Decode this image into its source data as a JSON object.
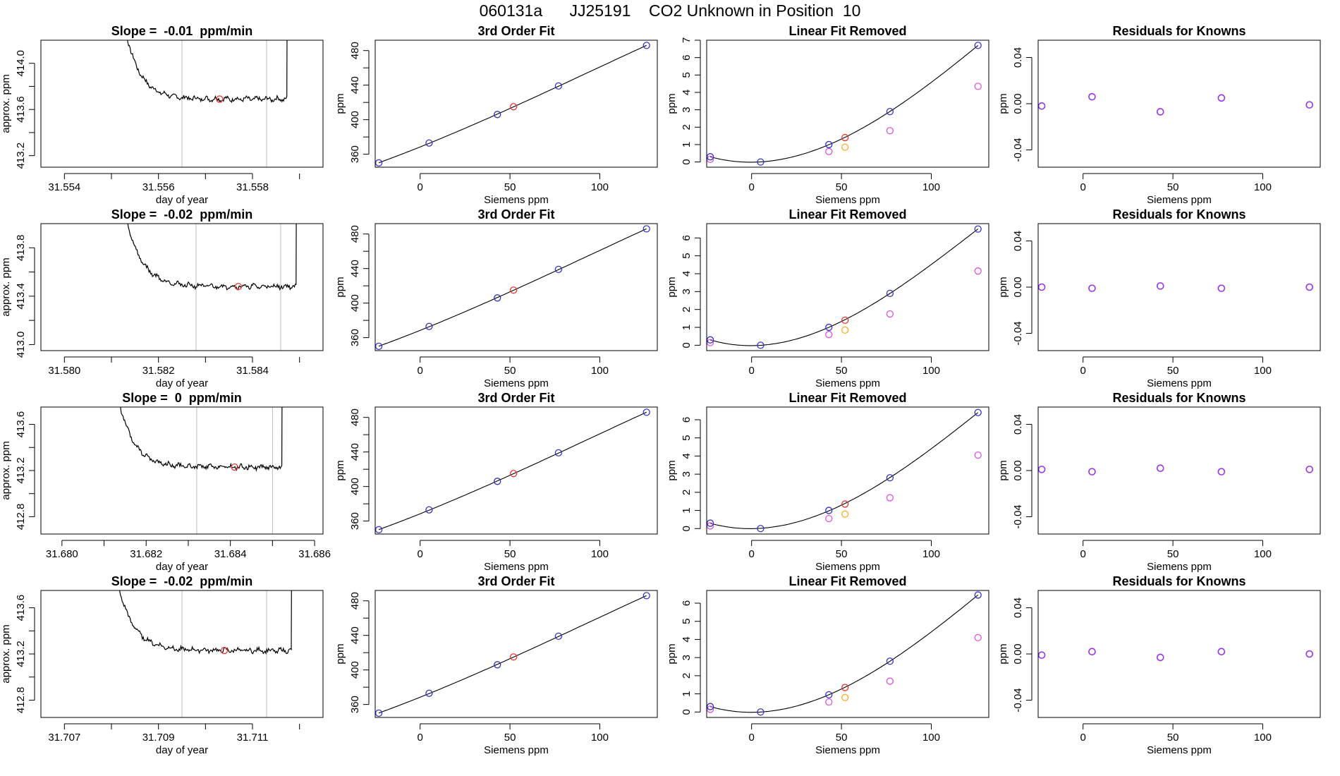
{
  "header": {
    "title": "060131a      JJ25191    CO2 Unknown in Position  10"
  },
  "colors": {
    "known": "#3333cc",
    "unknown": "#ee3333",
    "residual": "#9933ee",
    "removed": "#dd55dd",
    "unknown_removed": "#ffaa22",
    "vline": "#bbbbbb"
  },
  "chart_data": [
    {
      "type": "line",
      "row": 1,
      "panel": "drift",
      "title": "Slope =  -0.01  ppm/min",
      "xlabel": "day of year",
      "ylabel": "approx. ppm",
      "xlim": [
        31.5535,
        31.5595
      ],
      "ylim": [
        413.1,
        414.2
      ],
      "xticks": [
        31.554,
        31.556,
        31.558
      ],
      "xtick_labels": [
        "31.554",
        "31.556",
        "31.558"
      ],
      "yticks": [
        413.2,
        413.6,
        414.0
      ],
      "ytick_labels": [
        "413.2",
        "413.6",
        "414.0"
      ],
      "trace": {
        "x_start": 31.555,
        "x_end": 31.5588,
        "plateau": 413.69
      },
      "vlines": [
        31.5565,
        31.5583
      ],
      "marker": {
        "x": 31.5573,
        "y": 413.69
      }
    },
    {
      "type": "line",
      "row": 1,
      "panel": "fit",
      "title": "3rd Order Fit",
      "xlabel": "Siemens ppm",
      "ylabel": "ppm",
      "xlim": [
        -25,
        132
      ],
      "ylim": [
        345,
        492
      ],
      "xticks": [
        0,
        50,
        100
      ],
      "xtick_labels": [
        "0",
        "50",
        "100"
      ],
      "yticks": [
        360,
        400,
        440,
        480
      ],
      "ytick_labels": [
        "360",
        "400",
        "440",
        "480"
      ],
      "knowns": [
        [
          -23,
          350
        ],
        [
          5,
          373
        ],
        [
          43,
          406
        ],
        [
          77,
          439
        ],
        [
          126,
          486
        ]
      ],
      "unknown": [
        52,
        415
      ]
    },
    {
      "type": "line",
      "row": 1,
      "panel": "lin",
      "title": "Linear Fit Removed",
      "xlabel": "Siemens ppm",
      "ylabel": "ppm",
      "xlim": [
        -25,
        132
      ],
      "ylim": [
        -0.3,
        7
      ],
      "xticks": [
        0,
        50,
        100
      ],
      "xtick_labels": [
        "0",
        "50",
        "100"
      ],
      "yticks": [
        0,
        1,
        2,
        3,
        4,
        5,
        6,
        7
      ],
      "ytick_labels": [
        "0",
        "1",
        "2",
        "3",
        "4",
        "5",
        "6",
        "7"
      ],
      "knowns": [
        [
          -23,
          0.3
        ],
        [
          5,
          0
        ],
        [
          43,
          1.0
        ],
        [
          77,
          2.9
        ],
        [
          126,
          6.7
        ]
      ],
      "unknown": [
        52,
        1.4
      ],
      "removed": [
        [
          -23,
          0.15
        ],
        [
          43,
          0.6
        ],
        [
          77,
          1.8
        ],
        [
          126,
          4.35
        ]
      ],
      "unknown_removed": [
        52,
        0.85
      ]
    },
    {
      "type": "scatter",
      "row": 1,
      "panel": "res",
      "title": "Residuals for Knowns",
      "xlabel": "Siemens ppm",
      "ylabel": "ppm",
      "xlim": [
        -25,
        132
      ],
      "ylim": [
        -0.055,
        0.055
      ],
      "xticks": [
        0,
        50,
        100
      ],
      "xtick_labels": [
        "0",
        "50",
        "100"
      ],
      "yticks": [
        -0.04,
        0,
        0.04
      ],
      "ytick_labels": [
        "-0.04",
        "0.00",
        "0.04"
      ],
      "points": [
        [
          -23,
          -0.002
        ],
        [
          5,
          0.006
        ],
        [
          43,
          -0.007
        ],
        [
          77,
          0.005
        ],
        [
          126,
          -0.001
        ]
      ]
    },
    {
      "type": "line",
      "row": 2,
      "panel": "drift",
      "title": "Slope =  -0.02  ppm/min",
      "xlabel": "day of year",
      "ylabel": "approx. ppm",
      "xlim": [
        31.5795,
        31.5855
      ],
      "ylim": [
        412.95,
        414.0
      ],
      "xticks": [
        31.58,
        31.582,
        31.584
      ],
      "xtick_labels": [
        "31.580",
        "31.582",
        "31.584"
      ],
      "yticks": [
        413.0,
        413.4,
        413.8
      ],
      "ytick_labels": [
        "413.0",
        "413.4",
        "413.8"
      ],
      "trace": {
        "x_start": 31.581,
        "x_end": 31.585,
        "plateau": 413.48
      },
      "vlines": [
        31.5828,
        31.5846
      ],
      "marker": {
        "x": 31.5837,
        "y": 413.48
      }
    },
    {
      "type": "line",
      "row": 2,
      "panel": "fit",
      "title": "3rd Order Fit",
      "xlabel": "Siemens ppm",
      "ylabel": "ppm",
      "xlim": [
        -25,
        132
      ],
      "ylim": [
        345,
        492
      ],
      "xticks": [
        0,
        50,
        100
      ],
      "xtick_labels": [
        "0",
        "50",
        "100"
      ],
      "yticks": [
        360,
        400,
        440,
        480
      ],
      "ytick_labels": [
        "360",
        "400",
        "440",
        "480"
      ],
      "knowns": [
        [
          -23,
          350
        ],
        [
          5,
          373
        ],
        [
          43,
          406
        ],
        [
          77,
          439
        ],
        [
          126,
          486
        ]
      ],
      "unknown": [
        52,
        415
      ]
    },
    {
      "type": "line",
      "row": 2,
      "panel": "lin",
      "title": "Linear Fit Removed",
      "xlabel": "Siemens ppm",
      "ylabel": "ppm",
      "xlim": [
        -25,
        132
      ],
      "ylim": [
        -0.3,
        6.8
      ],
      "xticks": [
        0,
        50,
        100
      ],
      "xtick_labels": [
        "0",
        "50",
        "100"
      ],
      "yticks": [
        0,
        1,
        2,
        3,
        4,
        5,
        6
      ],
      "ytick_labels": [
        "0",
        "1",
        "2",
        "3",
        "4",
        "5",
        "6"
      ],
      "knowns": [
        [
          -23,
          0.3
        ],
        [
          5,
          0
        ],
        [
          43,
          1.0
        ],
        [
          77,
          2.9
        ],
        [
          126,
          6.5
        ]
      ],
      "unknown": [
        52,
        1.4
      ],
      "removed": [
        [
          -23,
          0.15
        ],
        [
          43,
          0.6
        ],
        [
          77,
          1.75
        ],
        [
          126,
          4.15
        ]
      ],
      "unknown_removed": [
        52,
        0.85
      ]
    },
    {
      "type": "scatter",
      "row": 2,
      "panel": "res",
      "title": "Residuals for Knowns",
      "xlabel": "Siemens ppm",
      "ylabel": "ppm",
      "xlim": [
        -25,
        132
      ],
      "ylim": [
        -0.055,
        0.055
      ],
      "xticks": [
        0,
        50,
        100
      ],
      "xtick_labels": [
        "0",
        "50",
        "100"
      ],
      "yticks": [
        -0.04,
        0,
        0.04
      ],
      "ytick_labels": [
        "-0.04",
        "0.00",
        "0.04"
      ],
      "points": [
        [
          -23,
          0
        ],
        [
          5,
          -0.001
        ],
        [
          43,
          0.001
        ],
        [
          77,
          -0.001
        ],
        [
          126,
          0
        ]
      ]
    },
    {
      "type": "line",
      "row": 3,
      "panel": "drift",
      "title": "Slope =  0  ppm/min",
      "xlabel": "day of year",
      "ylabel": "approx. ppm",
      "xlim": [
        31.6795,
        31.6862
      ],
      "ylim": [
        412.65,
        413.75
      ],
      "xticks": [
        31.68,
        31.682,
        31.684,
        31.686
      ],
      "xtick_labels": [
        "31.680",
        "31.682",
        "31.684",
        "31.686"
      ],
      "yticks": [
        412.8,
        413.2,
        413.6
      ],
      "ytick_labels": [
        "412.8",
        "413.2",
        "413.6"
      ],
      "trace": {
        "x_start": 31.681,
        "x_end": 31.6853,
        "plateau": 413.23
      },
      "vlines": [
        31.6832,
        31.685
      ],
      "marker": {
        "x": 31.6841,
        "y": 413.23
      }
    },
    {
      "type": "line",
      "row": 3,
      "panel": "fit",
      "title": "3rd Order Fit",
      "xlabel": "Siemens ppm",
      "ylabel": "ppm",
      "xlim": [
        -25,
        132
      ],
      "ylim": [
        345,
        492
      ],
      "xticks": [
        0,
        50,
        100
      ],
      "xtick_labels": [
        "0",
        "50",
        "100"
      ],
      "yticks": [
        360,
        400,
        440,
        480
      ],
      "ytick_labels": [
        "360",
        "400",
        "440",
        "480"
      ],
      "knowns": [
        [
          -23,
          350
        ],
        [
          5,
          373
        ],
        [
          43,
          406
        ],
        [
          77,
          439
        ],
        [
          126,
          486
        ]
      ],
      "unknown": [
        52,
        415
      ]
    },
    {
      "type": "line",
      "row": 3,
      "panel": "lin",
      "title": "Linear Fit Removed",
      "xlabel": "Siemens ppm",
      "ylabel": "ppm",
      "xlim": [
        -25,
        132
      ],
      "ylim": [
        -0.3,
        6.7
      ],
      "xticks": [
        0,
        50,
        100
      ],
      "xtick_labels": [
        "0",
        "50",
        "100"
      ],
      "yticks": [
        0,
        1,
        2,
        3,
        4,
        5,
        6
      ],
      "ytick_labels": [
        "0",
        "1",
        "2",
        "3",
        "4",
        "5",
        "6"
      ],
      "knowns": [
        [
          -23,
          0.3
        ],
        [
          5,
          0
        ],
        [
          43,
          1.0
        ],
        [
          77,
          2.8
        ],
        [
          126,
          6.4
        ]
      ],
      "unknown": [
        52,
        1.35
      ],
      "removed": [
        [
          -23,
          0.15
        ],
        [
          43,
          0.55
        ],
        [
          77,
          1.7
        ],
        [
          126,
          4.05
        ]
      ],
      "unknown_removed": [
        52,
        0.8
      ]
    },
    {
      "type": "scatter",
      "row": 3,
      "panel": "res",
      "title": "Residuals for Knowns",
      "xlabel": "Siemens ppm",
      "ylabel": "ppm",
      "xlim": [
        -25,
        132
      ],
      "ylim": [
        -0.055,
        0.055
      ],
      "xticks": [
        0,
        50,
        100
      ],
      "xtick_labels": [
        "0",
        "50",
        "100"
      ],
      "yticks": [
        -0.04,
        0,
        0.04
      ],
      "ytick_labels": [
        "-0.04",
        "0.00",
        "0.04"
      ],
      "points": [
        [
          -23,
          0.001
        ],
        [
          5,
          -0.001
        ],
        [
          43,
          0.002
        ],
        [
          77,
          -0.001
        ],
        [
          126,
          0.001
        ]
      ]
    },
    {
      "type": "line",
      "row": 4,
      "panel": "drift",
      "title": "Slope =  -0.02  ppm/min",
      "xlabel": "day of year",
      "ylabel": "approx. ppm",
      "xlim": [
        31.7065,
        31.7125
      ],
      "ylim": [
        412.65,
        413.75
      ],
      "xticks": [
        31.707,
        31.709,
        31.711
      ],
      "xtick_labels": [
        "31.707",
        "31.709",
        "31.711"
      ],
      "yticks": [
        412.8,
        413.2,
        413.6
      ],
      "ytick_labels": [
        "412.8",
        "413.2",
        "413.6"
      ],
      "trace": {
        "x_start": 31.7078,
        "x_end": 31.7119,
        "plateau": 413.23
      },
      "vlines": [
        31.7095,
        31.7113
      ],
      "marker": {
        "x": 31.7104,
        "y": 413.23
      }
    },
    {
      "type": "line",
      "row": 4,
      "panel": "fit",
      "title": "3rd Order Fit",
      "xlabel": "Siemens ppm",
      "ylabel": "ppm",
      "xlim": [
        -25,
        132
      ],
      "ylim": [
        345,
        492
      ],
      "xticks": [
        0,
        50,
        100
      ],
      "xtick_labels": [
        "0",
        "50",
        "100"
      ],
      "yticks": [
        360,
        400,
        440,
        480
      ],
      "ytick_labels": [
        "360",
        "400",
        "440",
        "480"
      ],
      "knowns": [
        [
          -23,
          350
        ],
        [
          5,
          373
        ],
        [
          43,
          406
        ],
        [
          77,
          439
        ],
        [
          126,
          486
        ]
      ],
      "unknown": [
        52,
        415
      ]
    },
    {
      "type": "line",
      "row": 4,
      "panel": "lin",
      "title": "Linear Fit Removed",
      "xlabel": "Siemens ppm",
      "ylabel": "ppm",
      "xlim": [
        -25,
        132
      ],
      "ylim": [
        -0.3,
        6.7
      ],
      "xticks": [
        0,
        50,
        100
      ],
      "xtick_labels": [
        "0",
        "50",
        "100"
      ],
      "yticks": [
        0,
        1,
        2,
        3,
        4,
        5,
        6
      ],
      "ytick_labels": [
        "0",
        "1",
        "2",
        "3",
        "4",
        "5",
        "6"
      ],
      "knowns": [
        [
          -23,
          0.3
        ],
        [
          5,
          0
        ],
        [
          43,
          0.95
        ],
        [
          77,
          2.8
        ],
        [
          126,
          6.45
        ]
      ],
      "unknown": [
        52,
        1.35
      ],
      "removed": [
        [
          -23,
          0.15
        ],
        [
          43,
          0.55
        ],
        [
          77,
          1.7
        ],
        [
          126,
          4.1
        ]
      ],
      "unknown_removed": [
        52,
        0.8
      ]
    },
    {
      "type": "scatter",
      "row": 4,
      "panel": "res",
      "title": "Residuals for Knowns",
      "xlabel": "Siemens ppm",
      "ylabel": "ppm",
      "xlim": [
        -25,
        132
      ],
      "ylim": [
        -0.055,
        0.055
      ],
      "xticks": [
        0,
        50,
        100
      ],
      "xtick_labels": [
        "0",
        "50",
        "100"
      ],
      "yticks": [
        -0.04,
        0,
        0.04
      ],
      "ytick_labels": [
        "-0.04",
        "0.00",
        "0.04"
      ],
      "points": [
        [
          -23,
          -0.001
        ],
        [
          5,
          0.002
        ],
        [
          43,
          -0.003
        ],
        [
          77,
          0.002
        ],
        [
          126,
          0
        ]
      ]
    }
  ]
}
